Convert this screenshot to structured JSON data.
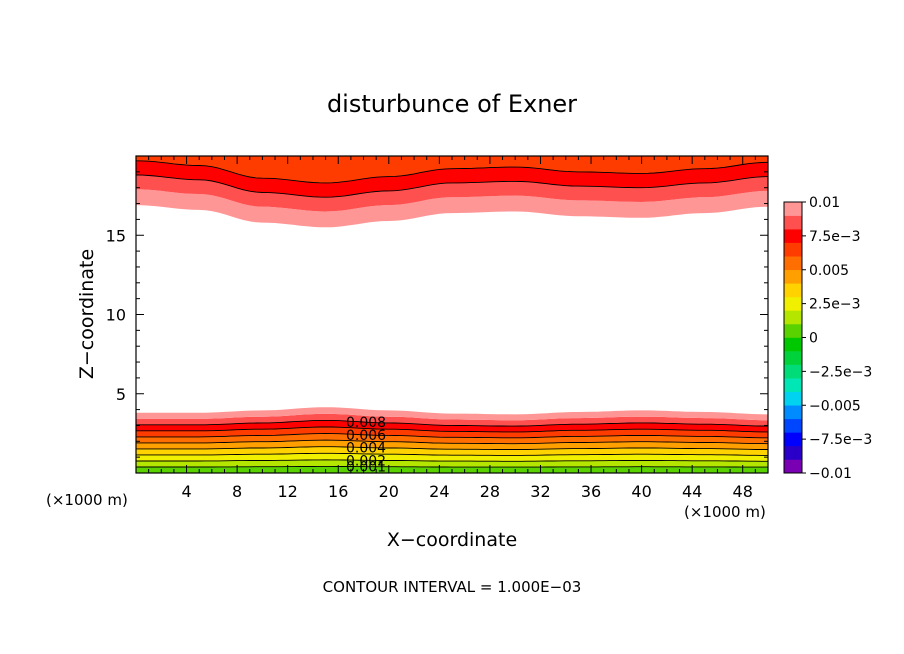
{
  "chart_data": {
    "type": "heatmap",
    "subtype": "filled-contour",
    "title": "disturbunce of Exner",
    "xlabel": "X−coordinate",
    "ylabel": "Z−coordinate",
    "x_unit_label": "(×1000 m)",
    "y_unit_label": "(×1000 m)",
    "footer": "CONTOUR INTERVAL = 1.000E−03",
    "xlim": [
      0,
      50
    ],
    "ylim": [
      0,
      20
    ],
    "x_ticks": [
      4,
      8,
      12,
      16,
      20,
      24,
      28,
      32,
      36,
      40,
      44,
      48
    ],
    "x_minor_step": 1,
    "y_ticks": [
      5,
      10,
      15
    ],
    "y_minor_step": 1,
    "grid": false,
    "legend_placement": "right",
    "colorbar": {
      "min": -0.01,
      "max": 0.01,
      "step": 0.001,
      "labels": [
        "0.01",
        "7.5e−3",
        "0.005",
        "2.5e−3",
        "0",
        "−2.5e−3",
        "−0.005",
        "−7.5e−3",
        "−0.01"
      ],
      "colors": [
        "#7a00b4",
        "#2a00c8",
        "#0000ff",
        "#0046ff",
        "#008cff",
        "#00d2f0",
        "#00e6b4",
        "#00dc78",
        "#00d23c",
        "#00c800",
        "#5ad200",
        "#b4e600",
        "#f0f000",
        "#ffd200",
        "#ffa000",
        "#ff6e00",
        "#ff3c00",
        "#ff0000",
        "#ff5050",
        "#ff9696"
      ]
    },
    "contour_labels": [
      "0.008",
      "0.006",
      "0.004",
      "0.002",
      "0.001"
    ],
    "regions": [
      {
        "name": "upper",
        "band_levels": [
          0.009,
          0.008,
          0.007,
          0.006
        ],
        "lower_edge_height_km": [
          [
            0,
            16.9
          ],
          [
            5,
            16.6
          ],
          [
            10,
            15.8
          ],
          [
            15,
            15.5
          ],
          [
            20,
            15.9
          ],
          [
            25,
            16.4
          ],
          [
            30,
            16.5
          ],
          [
            35,
            16.2
          ],
          [
            40,
            16.1
          ],
          [
            45,
            16.4
          ],
          [
            50,
            16.8
          ]
        ],
        "band_thickness_km": [
          1.0,
          0.9,
          0.9,
          0.9
        ]
      },
      {
        "name": "lower",
        "band_levels": [
          0.0,
          0.001,
          0.002,
          0.003,
          0.004,
          0.005,
          0.006,
          0.007,
          0.008,
          0.009
        ],
        "top_edge_height_km": [
          [
            0,
            3.8
          ],
          [
            5,
            3.8
          ],
          [
            10,
            3.95
          ],
          [
            15,
            4.15
          ],
          [
            20,
            3.95
          ],
          [
            25,
            3.75
          ],
          [
            30,
            3.7
          ],
          [
            35,
            3.85
          ],
          [
            40,
            3.95
          ],
          [
            45,
            3.85
          ],
          [
            50,
            3.7
          ]
        ]
      }
    ]
  }
}
